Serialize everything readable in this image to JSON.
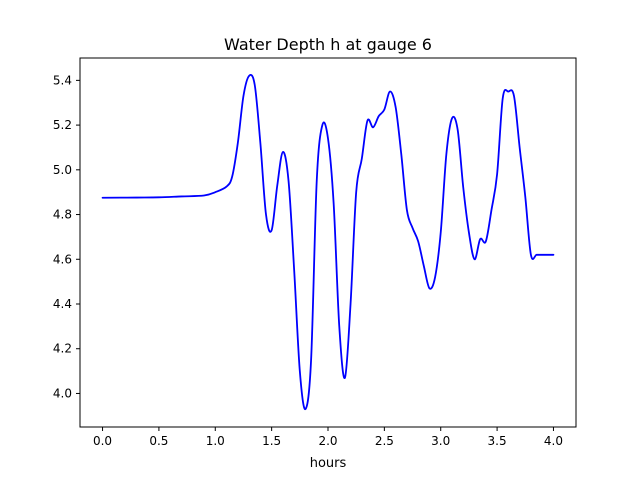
{
  "chart_data": {
    "type": "line",
    "title": "Water Depth h at gauge 6",
    "xlabel": "hours",
    "ylabel": "",
    "xlim": [
      -0.2,
      4.2
    ],
    "ylim": [
      3.85,
      5.5
    ],
    "x_ticks": [
      0.0,
      0.5,
      1.0,
      1.5,
      2.0,
      2.5,
      3.0,
      3.5,
      4.0
    ],
    "x_tick_labels": [
      "0.0",
      "0.5",
      "1.0",
      "1.5",
      "2.0",
      "2.5",
      "3.0",
      "3.5",
      "4.0"
    ],
    "y_ticks": [
      4.0,
      4.2,
      4.4,
      4.6,
      4.8,
      5.0,
      5.2,
      5.4
    ],
    "y_tick_labels": [
      "4.0",
      "4.2",
      "4.4",
      "4.6",
      "4.8",
      "5.0",
      "5.2",
      "5.4"
    ],
    "grid": false,
    "series": [
      {
        "color": "#0000ff",
        "x": [
          0.0,
          0.3,
          0.5,
          0.7,
          0.9,
          1.0,
          1.1,
          1.15,
          1.2,
          1.25,
          1.3,
          1.35,
          1.4,
          1.45,
          1.5,
          1.55,
          1.6,
          1.65,
          1.7,
          1.75,
          1.8,
          1.85,
          1.9,
          1.95,
          2.0,
          2.05,
          2.1,
          2.15,
          2.2,
          2.25,
          2.3,
          2.35,
          2.4,
          2.45,
          2.5,
          2.55,
          2.6,
          2.65,
          2.7,
          2.75,
          2.8,
          2.85,
          2.9,
          2.95,
          3.0,
          3.05,
          3.1,
          3.15,
          3.2,
          3.25,
          3.3,
          3.35,
          3.4,
          3.45,
          3.5,
          3.55,
          3.6,
          3.65,
          3.7,
          3.75,
          3.8,
          3.85,
          3.9,
          3.95,
          4.0
        ],
        "y": [
          4.875,
          4.876,
          4.877,
          4.881,
          4.885,
          4.9,
          4.925,
          4.97,
          5.12,
          5.33,
          5.42,
          5.38,
          5.12,
          4.8,
          4.73,
          4.93,
          5.08,
          4.95,
          4.55,
          4.1,
          3.93,
          4.15,
          4.95,
          5.2,
          5.14,
          4.85,
          4.3,
          4.07,
          4.4,
          4.9,
          5.05,
          5.22,
          5.19,
          5.24,
          5.27,
          5.35,
          5.28,
          5.07,
          4.82,
          4.74,
          4.68,
          4.57,
          4.47,
          4.52,
          4.72,
          5.07,
          5.23,
          5.18,
          4.92,
          4.72,
          4.6,
          4.69,
          4.68,
          4.82,
          4.98,
          5.32,
          5.35,
          5.33,
          5.1,
          4.88,
          4.62,
          4.62,
          4.62,
          4.62,
          4.62
        ]
      }
    ]
  }
}
